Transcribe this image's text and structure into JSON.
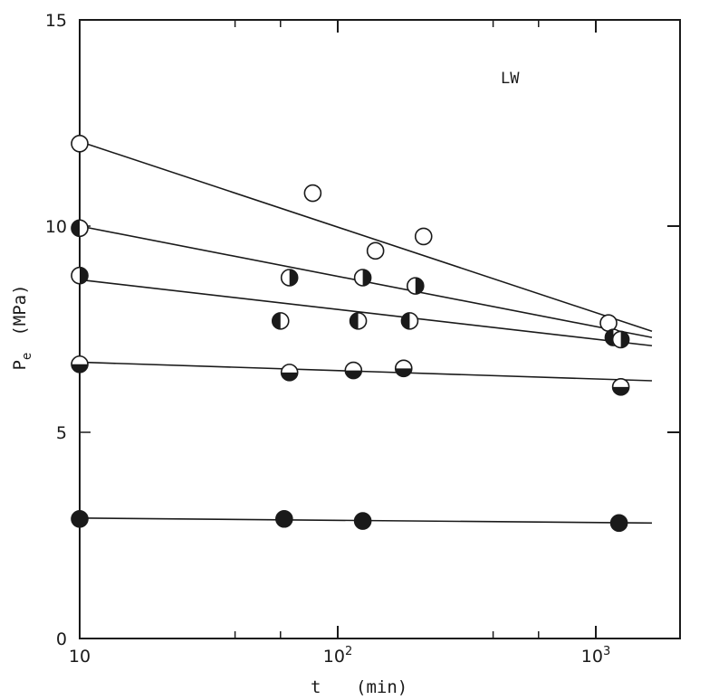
{
  "chart_data": {
    "type": "scatter",
    "xscale": "log",
    "xlim": [
      10,
      2000
    ],
    "ylim": [
      0,
      15
    ],
    "xlabel": {
      "var": "t",
      "unit": "(min)"
    },
    "ylabel": {
      "var": "P",
      "sub": "e",
      "unit": "(MPa)"
    },
    "x_ticks": [
      {
        "value": 10,
        "base": "10",
        "exp": ""
      },
      {
        "value": 100,
        "base": "10",
        "exp": "2"
      },
      {
        "value": 1000,
        "base": "10",
        "exp": "3"
      }
    ],
    "x_minor_ticks": [
      40,
      60,
      400,
      600
    ],
    "y_ticks": [
      {
        "value": 0,
        "label": "0"
      },
      {
        "value": 5,
        "label": "5"
      },
      {
        "value": 10,
        "label": "10"
      },
      {
        "value": 15,
        "label": "15"
      }
    ],
    "annotation": "LW",
    "series": [
      {
        "marker": "open",
        "points": [
          [
            10,
            12.0
          ],
          [
            80,
            10.8
          ],
          [
            140,
            9.4
          ],
          [
            215,
            9.75
          ],
          [
            1120,
            7.65
          ]
        ],
        "fit": [
          [
            10,
            12.05
          ],
          [
            1650,
            7.45
          ]
        ]
      },
      {
        "marker": "left-filled",
        "points": [
          [
            10,
            9.95
          ],
          [
            1170,
            7.3
          ]
        ],
        "fit": [
          [
            10,
            10.0
          ],
          [
            1650,
            7.3
          ]
        ]
      },
      {
        "marker": "right-filled",
        "points": [
          [
            10,
            8.8
          ],
          [
            65,
            8.75
          ],
          [
            125,
            8.75
          ],
          [
            200,
            8.55
          ],
          [
            1250,
            7.25
          ]
        ],
        "fit": [
          [
            10,
            8.7
          ],
          [
            1650,
            7.1
          ]
        ]
      },
      {
        "marker": "top-filled",
        "points": [
          [
            60,
            7.7
          ],
          [
            120,
            7.7
          ],
          [
            190,
            7.7
          ]
        ],
        "fit": null
      },
      {
        "marker": "bottom-filled",
        "points": [
          [
            10,
            6.65
          ],
          [
            65,
            6.45
          ],
          [
            115,
            6.5
          ],
          [
            180,
            6.55
          ],
          [
            1250,
            6.1
          ]
        ],
        "fit": [
          [
            10,
            6.7
          ],
          [
            1650,
            6.25
          ]
        ]
      },
      {
        "marker": "filled",
        "points": [
          [
            10,
            2.9
          ],
          [
            62,
            2.9
          ],
          [
            125,
            2.85
          ],
          [
            1230,
            2.8
          ]
        ],
        "fit": [
          [
            10,
            2.92
          ],
          [
            1650,
            2.8
          ]
        ]
      }
    ]
  }
}
